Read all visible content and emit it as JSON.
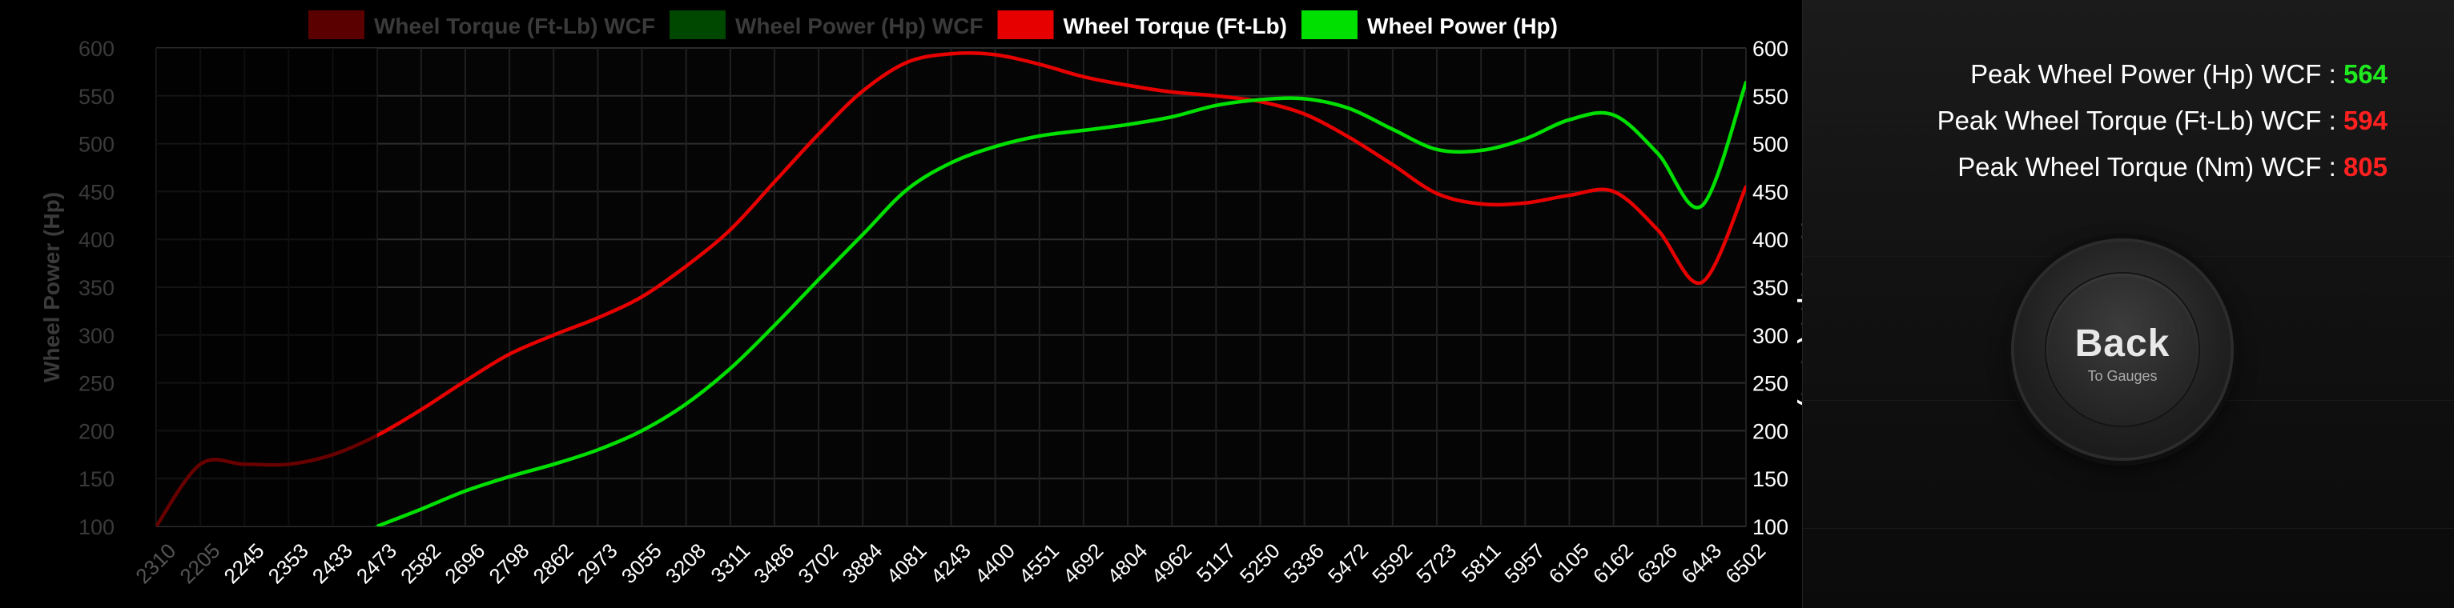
{
  "chart_data": {
    "type": "line",
    "rpm": [
      "2310",
      "2205",
      "2245",
      "2353",
      "2433",
      "2473",
      "2582",
      "2696",
      "2798",
      "2862",
      "2973",
      "3055",
      "3208",
      "3311",
      "3486",
      "3702",
      "3884",
      "4081",
      "4243",
      "4400",
      "4551",
      "4692",
      "4804",
      "4962",
      "5117",
      "5250",
      "5336",
      "5472",
      "5592",
      "5723",
      "5811",
      "5957",
      "6105",
      "6162",
      "6326",
      "6443",
      "6502"
    ],
    "y_left": {
      "label": "Wheel Power (Hp)",
      "ticks": [
        "100",
        "150",
        "200",
        "250",
        "300",
        "350",
        "400",
        "450",
        "500",
        "550",
        "600"
      ],
      "range": [
        100,
        600
      ]
    },
    "y_right": {
      "label": "Wheel Torque (Ft-Lb)",
      "ticks": [
        "100",
        "150",
        "200",
        "250",
        "300",
        "350",
        "400",
        "450",
        "500",
        "550",
        "600"
      ],
      "range": [
        100,
        600
      ]
    },
    "series": [
      {
        "name": "Wheel Torque (Ft-Lb) WCF",
        "color": "#5a0000",
        "active": false
      },
      {
        "name": "Wheel Power (Hp) WCF",
        "color": "#004800",
        "active": false
      },
      {
        "name": "Wheel Torque (Ft-Lb)",
        "color": "#e60000",
        "active": true,
        "values": [
          100,
          165,
          165,
          165,
          175,
          195,
          222,
          252,
          280,
          300,
          318,
          340,
          372,
          410,
          460,
          510,
          555,
          585,
          594,
          593,
          583,
          570,
          561,
          554,
          550,
          544,
          531,
          507,
          478,
          448,
          437,
          438,
          446,
          450,
          410,
          355,
          455
        ]
      },
      {
        "name": "Wheel Power (Hp)",
        "color": "#00e000",
        "active": true,
        "values": [
          null,
          null,
          null,
          null,
          null,
          100,
          118,
          137,
          152,
          165,
          180,
          200,
          228,
          265,
          310,
          358,
          405,
          452,
          480,
          497,
          508,
          514,
          520,
          528,
          540,
          546,
          547,
          537,
          515,
          494,
          493,
          505,
          525,
          530,
          490,
          435,
          564
        ]
      }
    ],
    "legend_position": "top",
    "grid": true
  },
  "peaks": [
    {
      "label": "Peak Wheel Power (Hp) WCF : ",
      "value": "564",
      "color": "#1fea1f"
    },
    {
      "label": "Peak Wheel Torque (Ft-Lb) WCF : ",
      "value": "594",
      "color": "#ff2020"
    },
    {
      "label": "Peak Wheel Torque (Nm) WCF : ",
      "value": "805",
      "color": "#ff2020"
    }
  ],
  "back_button": {
    "label": "Back",
    "sublabel": "To Gauges"
  },
  "colors": {
    "background": "#000000",
    "panel": "#141414",
    "text": "#ffffff",
    "disabled_text": "#3a3a3a"
  }
}
